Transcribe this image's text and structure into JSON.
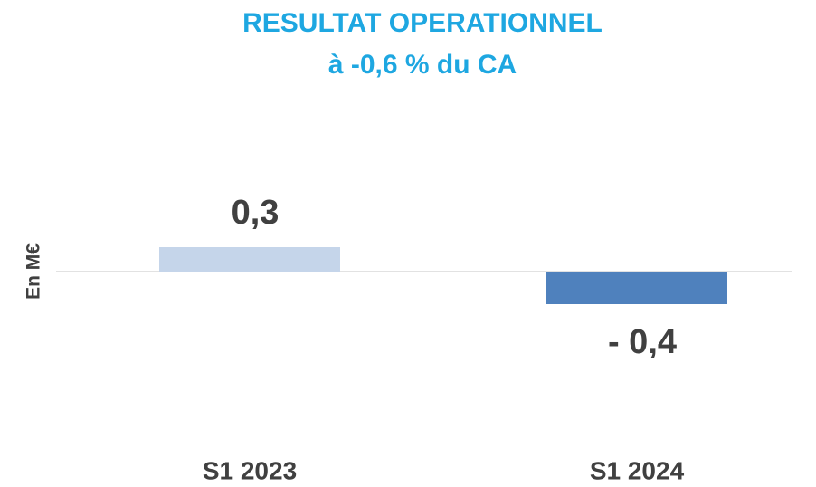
{
  "chart_data": {
    "type": "bar",
    "title": "RESULTAT OPERATIONNEL",
    "subtitle": "à -0,6 % du CA",
    "y_label": "En M€",
    "categories": [
      "S1 2023",
      "S1 2024"
    ],
    "values": [
      0.3,
      -0.4
    ],
    "value_labels": [
      "0,3",
      "- 0,4"
    ],
    "colors": [
      "#c5d5ea",
      "#4f81bd"
    ],
    "ylim": [
      -1.5,
      1.5
    ]
  }
}
